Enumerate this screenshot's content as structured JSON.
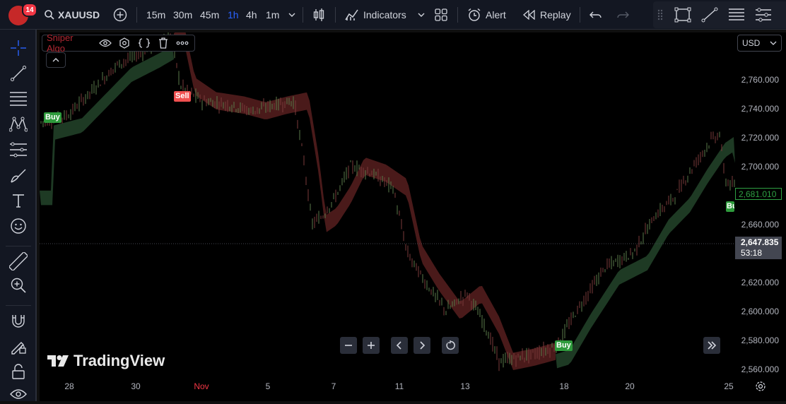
{
  "topbar": {
    "notification_count": "14",
    "symbol": "XAUUSD",
    "intervals": [
      "15m",
      "30m",
      "45m",
      "1h",
      "4h",
      "1m"
    ],
    "active_interval": "1h",
    "indicators_label": "Indicators",
    "alert_label": "Alert",
    "replay_label": "Replay"
  },
  "chart": {
    "indicator_name": "Sniper Algo",
    "currency": "USD",
    "price_labels": [
      "2,760.000",
      "2,740.000",
      "2,720.000",
      "2,700.000",
      "2,660.000",
      "2,620.000",
      "2,600.000",
      "2,580.000",
      "2,560.000"
    ],
    "last_price": "2,681.010",
    "current_price": "2,647.835",
    "countdown": "53:18",
    "time_labels": [
      "28",
      "30",
      "Nov",
      "5",
      "7",
      "11",
      "13",
      "18",
      "20",
      "25"
    ],
    "signals": {
      "buy": "Buy",
      "sell": "Sell"
    },
    "brand": "TradingView",
    "colors": {
      "bull": "#2ea043",
      "bear": "#f23645",
      "ribbon_green": "#1e3a24",
      "ribbon_red": "#4a1a1a",
      "accent": "#2962ff"
    }
  }
}
